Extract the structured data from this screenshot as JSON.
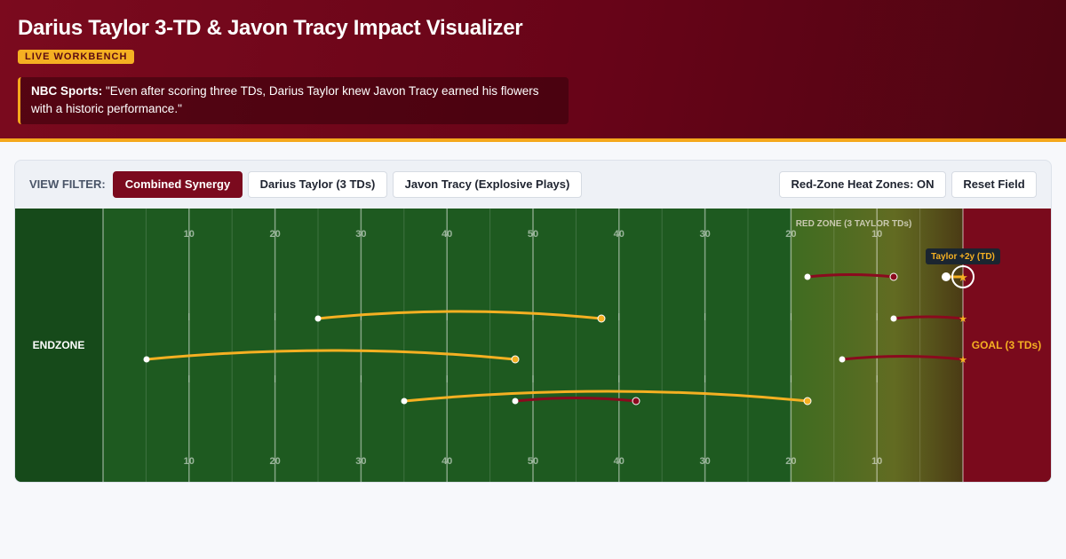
{
  "header": {
    "title": "Darius Taylor 3-TD & Javon Tracy Impact Visualizer",
    "badge": "LIVE WORKBENCH",
    "quote_source": "NBC Sports:",
    "quote_text": "\"Even after scoring three TDs, Darius Taylor knew Javon Tracy earned his flowers with a historic performance.\""
  },
  "toolbar": {
    "filter_label": "VIEW FILTER:",
    "filters": [
      "Combined Synergy",
      "Darius Taylor (3 TDs)",
      "Javon Tracy (Explosive Plays)"
    ],
    "active_filter": "Combined Synergy",
    "heat_toggle": "Red-Zone Heat Zones: ON",
    "reset": "Reset Field"
  },
  "field": {
    "endzone_left": "ENDZONE",
    "goal_label": "GOAL (3 TDs)",
    "redzone_label": "RED ZONE (3 TAYLOR TDs)",
    "yard_labels": [
      "10",
      "20",
      "30",
      "40",
      "50",
      "40",
      "30",
      "20",
      "10"
    ],
    "tooltip": "Taylor +2y (TD)",
    "colors": {
      "turf": "#1e5a20",
      "endzone_left": "#164a1a",
      "endzone_right": "#7a0a1c",
      "tracy": "#f5b022",
      "taylor": "#8a0a1e",
      "goal_text": "#f5b022"
    }
  }
}
